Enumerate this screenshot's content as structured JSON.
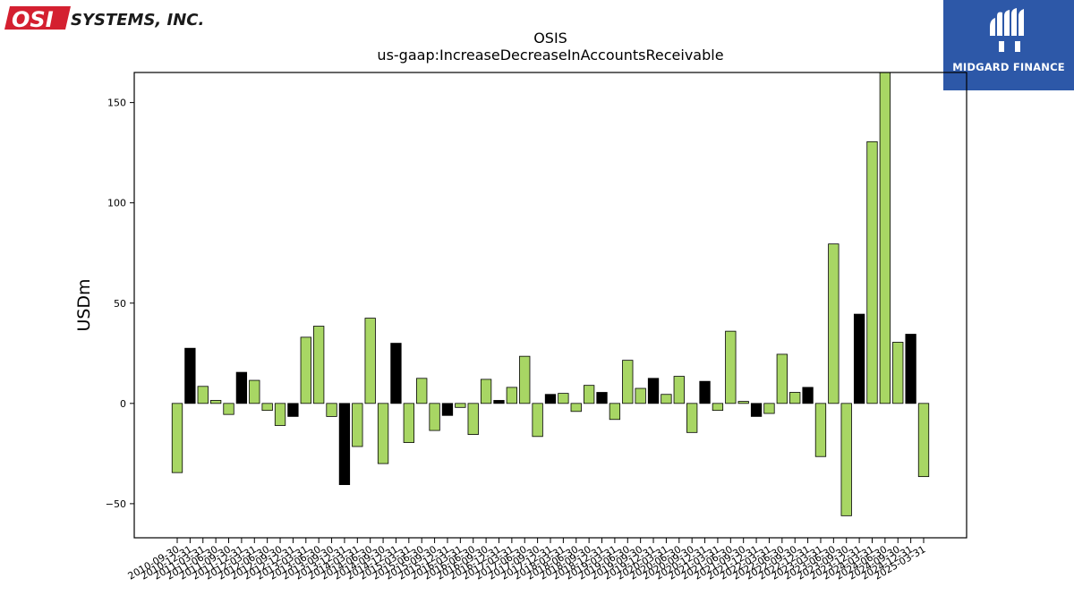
{
  "header": {
    "company_logo_text": "SYSTEMS, INC.",
    "company_logo_mark": "OSI",
    "brand_logo_text": "MIDGARD FINANCE"
  },
  "colors": {
    "bar_green": "#a8d664",
    "bar_black": "#000000",
    "osi_red": "#d42030",
    "brand_blue": "#2d58a8"
  },
  "chart_data": {
    "type": "bar",
    "title": "OSIS",
    "subtitle": "us-gaap:IncreaseDecreaseInAccountsReceivable",
    "ylabel": "USDm",
    "xlabel": "",
    "ylim": [
      -67,
      165
    ],
    "yticks": [
      -50,
      0,
      50,
      100,
      150
    ],
    "grid": false,
    "categories": [
      "2010-09-30",
      "2010-12-31",
      "2011-03-31",
      "2011-06-30",
      "2011-09-30",
      "2011-12-31",
      "2012-03-31",
      "2012-06-30",
      "2012-09-30",
      "2012-12-31",
      "2013-03-31",
      "2013-06-30",
      "2013-09-30",
      "2013-12-31",
      "2014-03-31",
      "2014-06-30",
      "2014-09-30",
      "2014-12-31",
      "2015-03-31",
      "2015-06-30",
      "2015-09-30",
      "2015-12-31",
      "2016-03-31",
      "2016-06-30",
      "2016-09-30",
      "2016-12-31",
      "2017-03-31",
      "2017-06-30",
      "2017-09-30",
      "2017-12-31",
      "2018-03-31",
      "2018-06-30",
      "2018-09-30",
      "2018-12-31",
      "2019-03-31",
      "2019-06-30",
      "2019-09-30",
      "2019-12-31",
      "2020-03-31",
      "2020-06-30",
      "2020-09-30",
      "2020-12-31",
      "2021-03-31",
      "2021-06-30",
      "2021-09-30",
      "2021-12-31",
      "2022-03-31",
      "2022-06-30",
      "2022-09-30",
      "2022-12-31",
      "2023-03-31",
      "2023-06-30",
      "2023-09-30",
      "2023-12-31",
      "2024-03-31",
      "2024-06-30",
      "2024-09-30",
      "2024-12-31",
      "2025-03-31"
    ],
    "values": [
      -34.5,
      27.5,
      8.5,
      1.5,
      -5.5,
      15.5,
      11.5,
      -3.5,
      -11,
      -6.5,
      33,
      38.5,
      -6.5,
      -40.5,
      -21.5,
      42.5,
      -30,
      30,
      -19.5,
      12.5,
      -13.5,
      -6,
      -2,
      -15.5,
      12,
      1.5,
      8,
      23.5,
      -16.5,
      4.5,
      5,
      -4,
      9,
      5.5,
      -8,
      21.5,
      7.5,
      12.5,
      4.5,
      13.5,
      -14.5,
      11,
      -3.5,
      36,
      1,
      -6.5,
      -5,
      24.5,
      5.5,
      8,
      -26.5,
      79.5,
      -56,
      44.5,
      130.5,
      165,
      30.5,
      34.5,
      -36.5
    ],
    "highlight_black": [
      1,
      5,
      9,
      13,
      17,
      21,
      25,
      29,
      33,
      37,
      41,
      45,
      49,
      53,
      57
    ]
  }
}
